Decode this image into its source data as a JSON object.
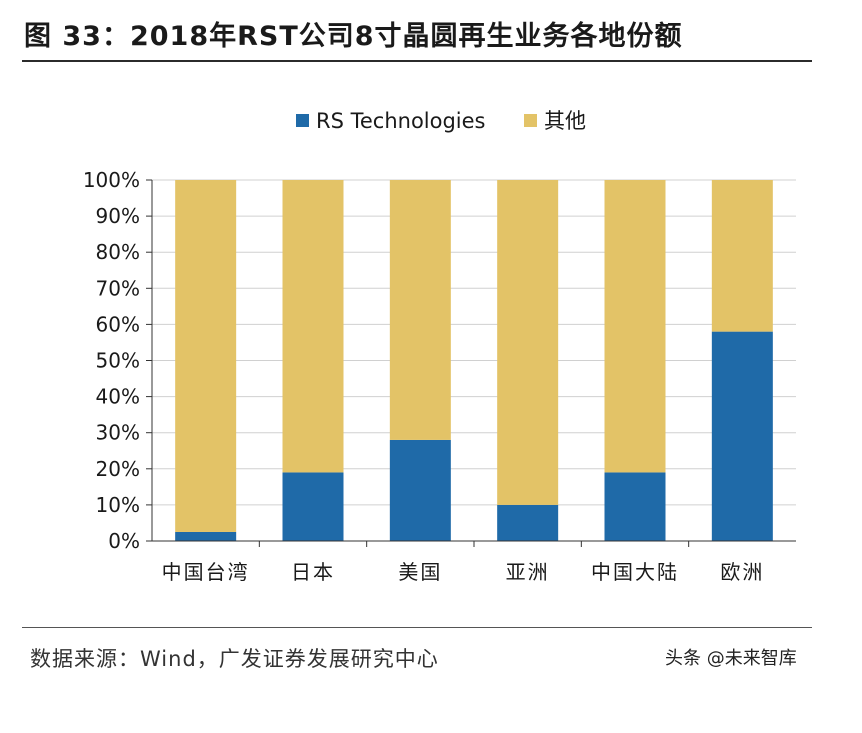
{
  "title": "图 33：2018年RST公司8寸晶圆再生业务各地份额",
  "source": "数据来源：Wind，广发证券发展研究中心",
  "watermark": "头条 @未来智库",
  "colors": {
    "rs": "#1f6aa8",
    "other": "#e3c367",
    "grid": "#d0d0d0",
    "axis": "#333333"
  },
  "chart_data": {
    "type": "bar",
    "stacked": true,
    "title": "",
    "xlabel": "",
    "ylabel": "",
    "ylim": [
      0,
      100
    ],
    "yticks": [
      "0%",
      "10%",
      "20%",
      "30%",
      "40%",
      "50%",
      "60%",
      "70%",
      "80%",
      "90%",
      "100%"
    ],
    "legend_position": "top",
    "categories": [
      "中国台湾",
      "日本",
      "美国",
      "亚洲",
      "中国大陆",
      "欧洲"
    ],
    "series": [
      {
        "name": "RS Technologies",
        "values": [
          2.5,
          19,
          28,
          10,
          19,
          58
        ]
      },
      {
        "name": "其他",
        "values": [
          97.5,
          81,
          72,
          90,
          81,
          42
        ]
      }
    ]
  }
}
